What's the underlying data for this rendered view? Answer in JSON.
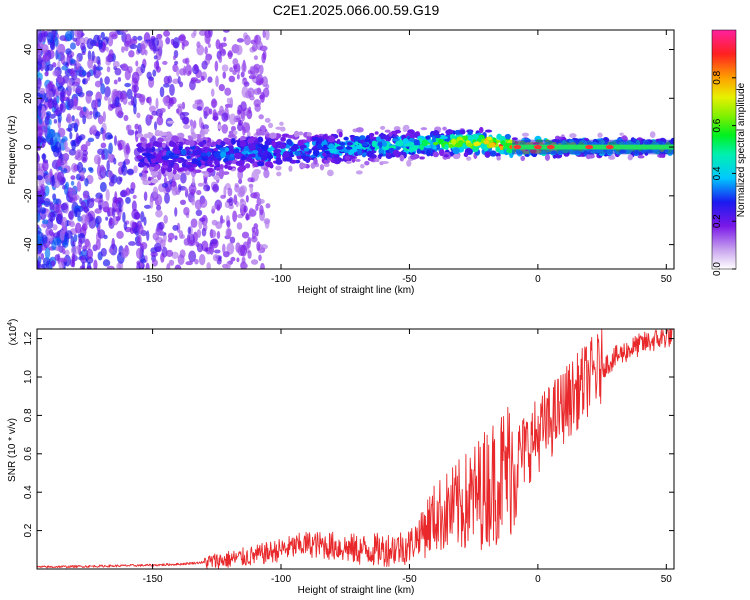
{
  "chart_data": [
    {
      "type": "heatmap",
      "title": "C2E1.2025.066.00.59.G19",
      "xlabel": "Height of straight line (km)",
      "ylabel": "Frequency (Hz)",
      "xlim": [
        -195,
        53
      ],
      "ylim": [
        -50,
        48
      ],
      "xticks": [
        -150,
        -100,
        -50,
        0,
        50
      ],
      "xtick_labels": [
        "-150",
        "-100",
        "-50",
        "0",
        "50"
      ],
      "yticks": [
        -40,
        -20,
        0,
        20,
        40
      ],
      "ytick_labels": [
        "-40",
        "-20",
        "0",
        "20",
        "40"
      ],
      "colorbar": {
        "label": "Normalized spectral amplitude",
        "range": [
          0,
          1
        ],
        "ticks": [
          0.0,
          0.2,
          0.4,
          0.6,
          0.8
        ],
        "tick_labels": [
          "0.0",
          "0.2",
          "0.4",
          "0.6",
          "0.8"
        ]
      },
      "ridge": {
        "x": [
          -150,
          -130,
          -110,
          -90,
          -70,
          -50,
          -30,
          -20,
          -10,
          0,
          10,
          20,
          30,
          40,
          53
        ],
        "frequency": [
          -4,
          -3,
          -2,
          -1,
          0,
          1,
          2,
          2,
          0,
          0,
          0,
          0,
          0,
          0,
          0
        ],
        "amplitude": [
          0.25,
          0.3,
          0.35,
          0.35,
          0.4,
          0.45,
          0.6,
          0.75,
          0.85,
          0.9,
          0.6,
          0.6,
          0.6,
          0.6,
          0.6
        ]
      }
    },
    {
      "type": "line",
      "xlabel": "Height of straight line (km)",
      "ylabel": "SNR (10 * v/v)",
      "multiplier_label": "(x10",
      "multiplier_exp": "4",
      "xlim": [
        -195,
        53
      ],
      "ylim": [
        0,
        1.25
      ],
      "xticks": [
        -150,
        -100,
        -50,
        0,
        50
      ],
      "xtick_labels": [
        "-150",
        "-100",
        "-50",
        "0",
        "50"
      ],
      "yticks": [
        0.2,
        0.4,
        0.6,
        0.8,
        1.0,
        1.2
      ],
      "ytick_labels": [
        "0.2",
        "0.4",
        "0.6",
        "0.8",
        "1.0",
        "1.2"
      ],
      "series": [
        {
          "name": "SNR",
          "color": "#e8282a",
          "x": [
            -195,
            -170,
            -150,
            -140,
            -130,
            -120,
            -110,
            -100,
            -90,
            -80,
            -70,
            -60,
            -50,
            -45,
            -40,
            -35,
            -30,
            -25,
            -20,
            -15,
            -10,
            -5,
            0,
            5,
            10,
            15,
            20,
            25,
            30,
            35,
            40,
            45,
            50,
            53
          ],
          "y": [
            0.01,
            0.015,
            0.02,
            0.025,
            0.035,
            0.05,
            0.07,
            0.1,
            0.13,
            0.12,
            0.1,
            0.1,
            0.12,
            0.2,
            0.27,
            0.3,
            0.33,
            0.37,
            0.43,
            0.48,
            0.55,
            0.62,
            0.7,
            0.77,
            0.85,
            0.92,
            1.0,
            1.05,
            1.1,
            1.14,
            1.17,
            1.19,
            1.21,
            1.22
          ]
        }
      ]
    }
  ]
}
